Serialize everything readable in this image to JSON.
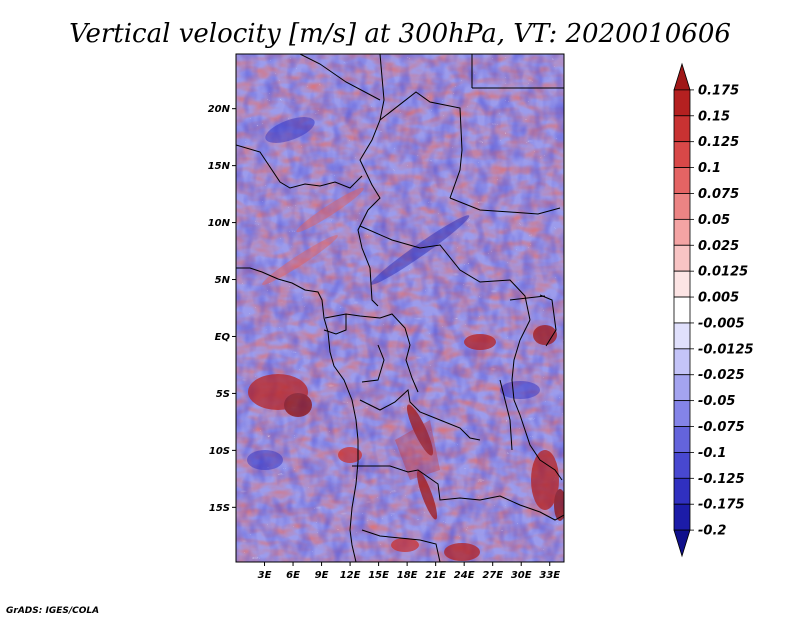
{
  "title": "Vertical velocity [m/s] at 300hPa, VT: 2020010606",
  "credit": "GrADS: IGES/COLA",
  "map": {
    "lat_labels": [
      "20N",
      "15N",
      "10N",
      "5N",
      "EQ",
      "5S",
      "10S",
      "15S"
    ],
    "lat_values": [
      20,
      15,
      10,
      5,
      0,
      -5,
      -10,
      -15
    ],
    "lon_labels": [
      "3E",
      "6E",
      "9E",
      "12E",
      "15E",
      "18E",
      "21E",
      "24E",
      "27E",
      "30E",
      "33E"
    ],
    "lon_values": [
      3,
      6,
      9,
      12,
      15,
      18,
      21,
      24,
      27,
      30,
      33
    ],
    "lat_range": [
      -19.8,
      24.8
    ],
    "lon_range": [
      0,
      34.5
    ]
  },
  "colorbar": {
    "labels": [
      "0.175",
      "0.15",
      "0.125",
      "0.1",
      "0.075",
      "0.05",
      "0.025",
      "0.0125",
      "0.005",
      "-0.005",
      "-0.0125",
      "-0.025",
      "-0.05",
      "-0.075",
      "-0.1",
      "-0.125",
      "-0.175",
      "-0.2"
    ],
    "colors": [
      "#a01818",
      "#b42020",
      "#c83232",
      "#d84848",
      "#e46464",
      "#ec8484",
      "#f4a4a4",
      "#f8c4c4",
      "#fce4e4",
      "#ffffff",
      "#e0e0fc",
      "#c4c4f8",
      "#a4a4f0",
      "#8484e8",
      "#6464dc",
      "#4848d0",
      "#3030c0",
      "#1c1ca8",
      "#10108c"
    ]
  }
}
